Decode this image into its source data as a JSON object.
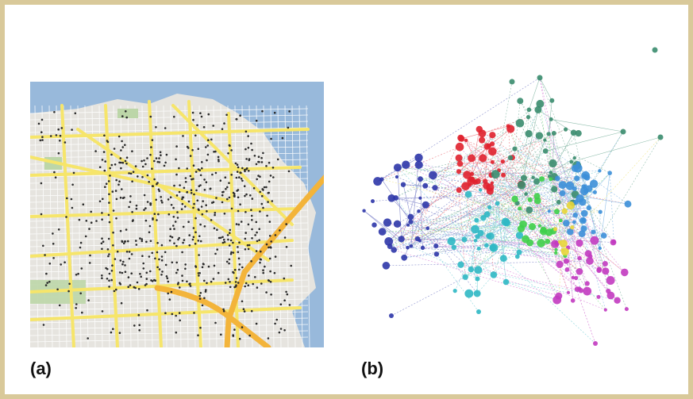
{
  "figure": {
    "panel_a": {
      "label": "(a)",
      "colors": {
        "water": "#98b9db",
        "land": "#e6e4df",
        "major_road": "#f6e56a",
        "highway": "#f3b43a",
        "park": "#bcd6a8",
        "point": "#2b2b2b"
      }
    },
    "panel_b": {
      "label": "(b)",
      "cluster_colors": [
        "#2d36a8",
        "#e0212d",
        "#3a8c6e",
        "#2fb8c4",
        "#3c8fd8",
        "#3fcf4a",
        "#c23bc0",
        "#e8d63a"
      ]
    }
  }
}
